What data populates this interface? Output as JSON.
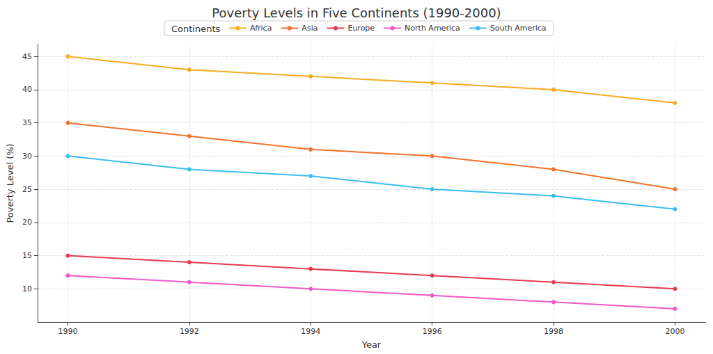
{
  "chart_data": {
    "type": "line",
    "title": "Poverty Levels in Five Continents (1990-2000)",
    "x_label": "Year",
    "y_label": "Poverty Level (%)",
    "legend_title": "Continents",
    "x": [
      1990,
      1992,
      1994,
      1996,
      1998,
      2000
    ],
    "series": [
      {
        "name": "Africa",
        "color": "#fbaa1d",
        "values": [
          45,
          43,
          42,
          41,
          40,
          38
        ]
      },
      {
        "name": "Asia",
        "color": "#f2712c",
        "values": [
          35,
          33,
          31,
          30,
          28,
          25
        ]
      },
      {
        "name": "Europe",
        "color": "#e9384e",
        "values": [
          15,
          14,
          13,
          12,
          11,
          10
        ]
      },
      {
        "name": "North America",
        "color": "#f257c6",
        "values": [
          12,
          11,
          10,
          9,
          8,
          7
        ]
      },
      {
        "name": "South America",
        "color": "#3bbcf0",
        "values": [
          30,
          28,
          27,
          25,
          24,
          22
        ]
      }
    ],
    "xlim": [
      1989.5,
      2000.5
    ],
    "xticks": [
      1990,
      1992,
      1994,
      1996,
      1998,
      2000
    ],
    "ylim": [
      5,
      46.8
    ],
    "yticks": [
      10,
      15,
      20,
      25,
      30,
      35,
      40,
      45
    ],
    "grid": true,
    "legend": "upper center",
    "marker": "circle",
    "line_style": "solid"
  }
}
